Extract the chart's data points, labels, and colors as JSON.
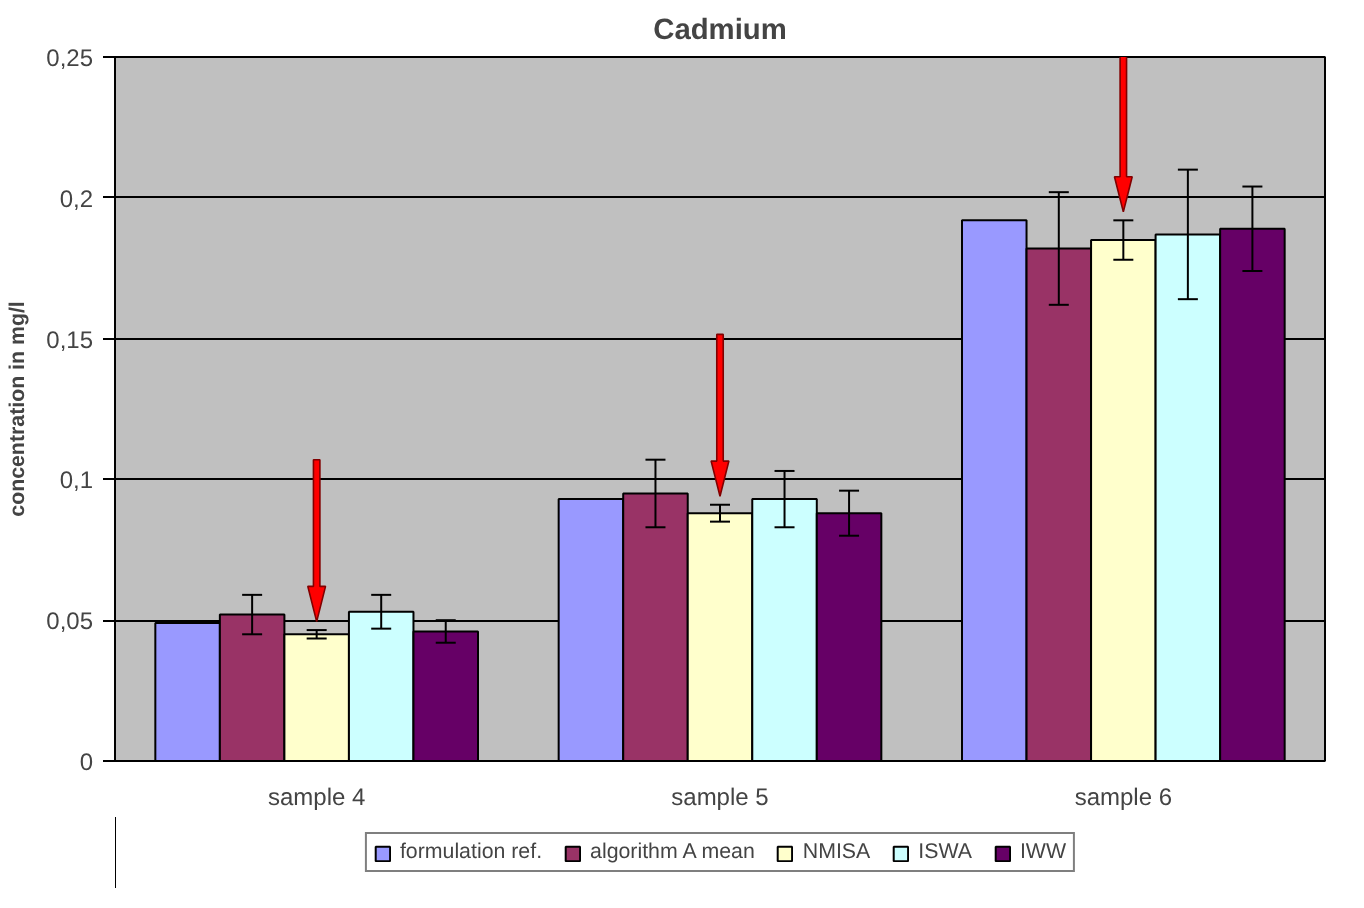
{
  "chart_data": {
    "type": "bar",
    "title": "Cadmium",
    "ylabel": "concentration in mg/l",
    "categories": [
      "sample 4",
      "sample 5",
      "sample 6"
    ],
    "series": [
      {
        "name": "formulation ref.",
        "color": "#9999ff",
        "values": [
          0.049,
          0.093,
          0.192
        ]
      },
      {
        "name": "algorithm A mean",
        "color": "#993366",
        "values": [
          0.052,
          0.095,
          0.182
        ],
        "errors": [
          0.007,
          0.012,
          0.02
        ]
      },
      {
        "name": "NMISA",
        "color": "#ffffcc",
        "values": [
          0.045,
          0.088,
          0.185
        ],
        "errors": [
          0.0015,
          0.003,
          0.007
        ]
      },
      {
        "name": "ISWA",
        "color": "#ccffff",
        "values": [
          0.053,
          0.093,
          0.187
        ],
        "errors": [
          0.006,
          0.01,
          0.023
        ]
      },
      {
        "name": "IWW",
        "color": "#660066",
        "values": [
          0.046,
          0.088,
          0.189
        ],
        "errors": [
          0.004,
          0.008,
          0.015
        ]
      }
    ],
    "ylim": [
      0,
      0.25
    ],
    "yticks": [
      {
        "value": 0,
        "label": "0"
      },
      {
        "value": 0.05,
        "label": "0,05"
      },
      {
        "value": 0.1,
        "label": "0,1"
      },
      {
        "value": 0.15,
        "label": "0,15"
      },
      {
        "value": 0.2,
        "label": "0,2"
      },
      {
        "value": 0.25,
        "label": "0,25"
      }
    ],
    "grid": "y",
    "legend": "bottom"
  }
}
